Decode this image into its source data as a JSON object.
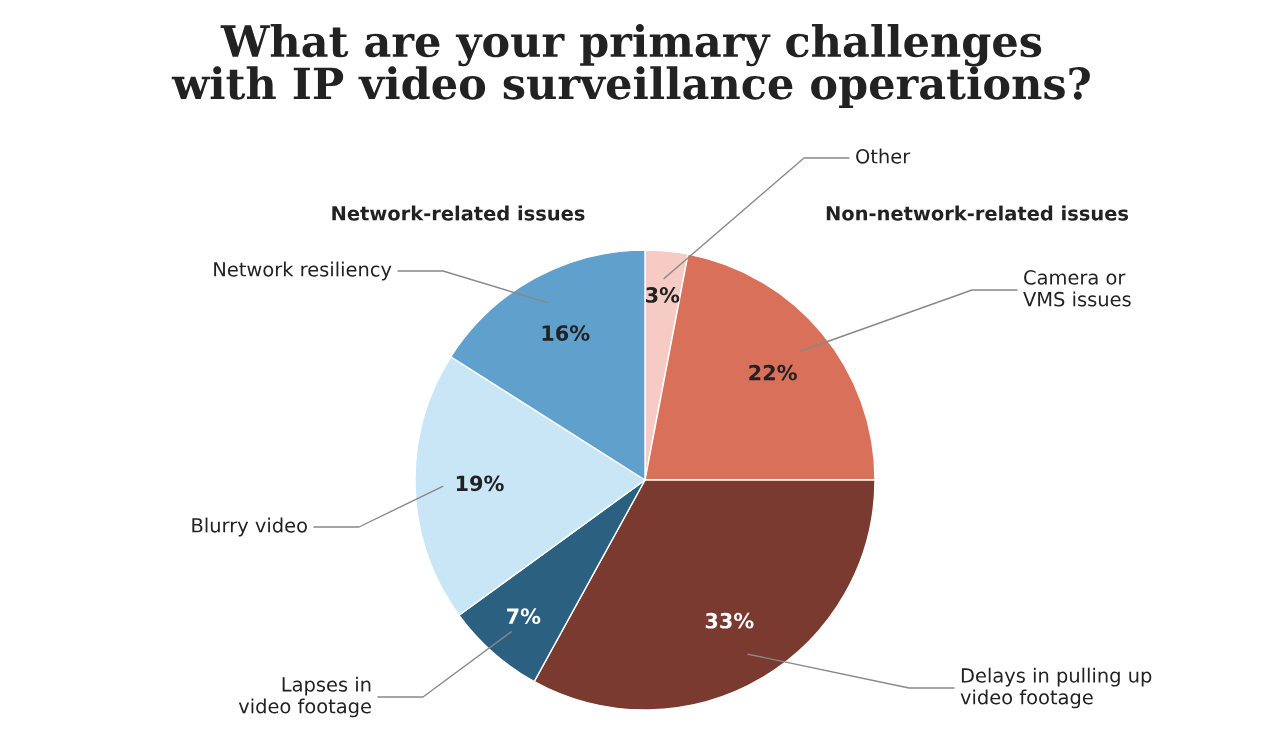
{
  "chart_data": {
    "type": "pie",
    "title": "What are your primary challenges\nwith IP video surveillance operations?",
    "categories": [
      "Other",
      "Camera or\nVMS issues",
      "Delays in pulling up\nvideo footage",
      "Lapses in\nvideo footage",
      "Blurry video",
      "Network resiliency"
    ],
    "values": [
      3,
      22,
      33,
      7,
      19,
      16
    ],
    "value_labels": [
      "3%",
      "22%",
      "33%",
      "7%",
      "19%",
      "16%"
    ],
    "colors": [
      "#f6cbc4",
      "#d9705a",
      "#7b3a30",
      "#2b6080",
      "#c9e6f6",
      "#60a0cc"
    ],
    "annotations": [
      "Network-related issues",
      "Non-network-related issues"
    ],
    "legend": false
  }
}
